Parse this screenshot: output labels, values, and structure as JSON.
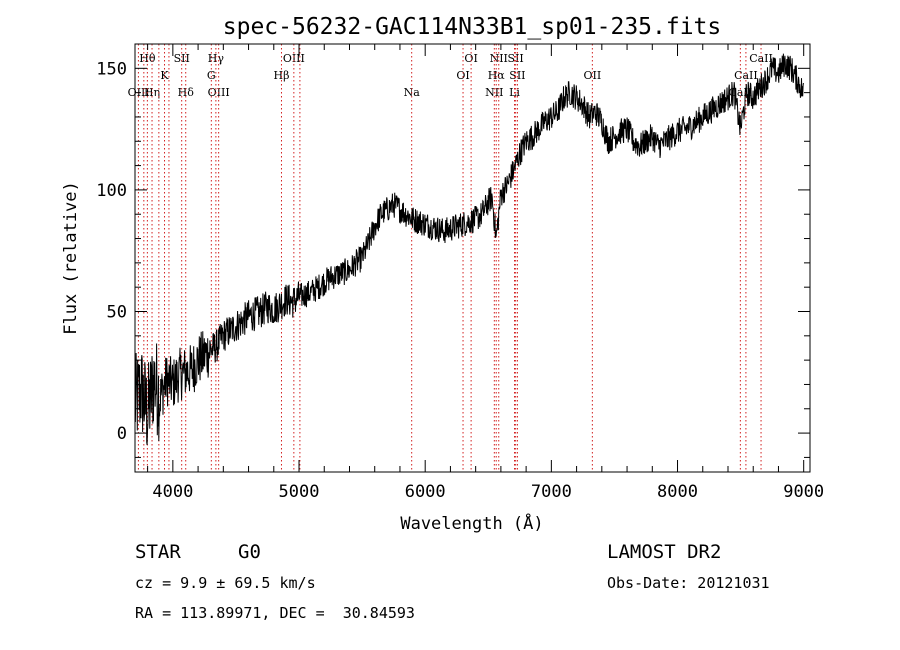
{
  "chart_data": {
    "type": "line",
    "title": "spec-56232-GAC114N33B1_sp01-235.fits",
    "xlabel": "Wavelength (Å)",
    "ylabel": "Flux (relative)",
    "xlim": [
      3700,
      9050
    ],
    "ylim": [
      -16,
      160
    ],
    "xticks": [
      "4000",
      "5000",
      "6000",
      "7000",
      "8000",
      "9000"
    ],
    "xtick_values": [
      4000,
      5000,
      6000,
      7000,
      8000,
      9000
    ],
    "yticks": [
      "0",
      "50",
      "100",
      "150"
    ],
    "ytick_values": [
      0,
      50,
      100,
      150
    ],
    "series": [
      {
        "x": [
          3700,
          3750,
          3800,
          3850,
          3900,
          3950,
          4000,
          4050,
          4100,
          4150,
          4200,
          4250,
          4300,
          4350,
          4400,
          4450,
          4500,
          4550,
          4600,
          4650,
          4700,
          4750,
          4800,
          4850,
          4900,
          4950,
          5000,
          5050,
          5100,
          5150,
          5200,
          5250,
          5300,
          5350,
          5400,
          5450,
          5500,
          5550,
          5600,
          5650,
          5700,
          5750,
          5800,
          5850,
          5900,
          5950,
          6000,
          6050,
          6100,
          6150,
          6200,
          6250,
          6300,
          6350,
          6400,
          6450,
          6500,
          6530,
          6563,
          6600,
          6650,
          6700,
          6750,
          6800,
          6850,
          6900,
          6950,
          7000,
          7050,
          7100,
          7150,
          7200,
          7250,
          7300,
          7350,
          7400,
          7450,
          7500,
          7550,
          7600,
          7650,
          7700,
          7750,
          7800,
          7850,
          7900,
          7950,
          8000,
          8050,
          8100,
          8150,
          8200,
          8250,
          8300,
          8350,
          8400,
          8450,
          8498,
          8550,
          8600,
          8650,
          8700,
          8750,
          8800,
          8850,
          8900,
          8950,
          9000
        ],
        "y": [
          12,
          18,
          8,
          22,
          15,
          22,
          20,
          24,
          25,
          26,
          30,
          32,
          34,
          36,
          40,
          42,
          44,
          46,
          48,
          49,
          50,
          52,
          51,
          53,
          55,
          54,
          56,
          57,
          58,
          60,
          62,
          64,
          65,
          66,
          67,
          70,
          72,
          78,
          85,
          90,
          92,
          94,
          92,
          90,
          88,
          87,
          86,
          85,
          84,
          83,
          84,
          85,
          86,
          87,
          88,
          90,
          95,
          97,
          80,
          98,
          102,
          108,
          115,
          120,
          122,
          125,
          128,
          130,
          132,
          138,
          140,
          138,
          135,
          130,
          132,
          128,
          120,
          122,
          124,
          125,
          120,
          118,
          120,
          122,
          118,
          120,
          122,
          124,
          125,
          126,
          128,
          130,
          132,
          134,
          136,
          138,
          140,
          125,
          140,
          138,
          142,
          145,
          150,
          148,
          152,
          150,
          145,
          140
        ]
      }
    ],
    "emission_lines": [
      {
        "label": "Hθ",
        "x": 3798,
        "row": 0
      },
      {
        "label": "K",
        "x": 3934,
        "row": 1
      },
      {
        "label": "OIII",
        "x": 3729,
        "row": 2
      },
      {
        "label": "Hη",
        "x": 3835,
        "row": 2
      },
      {
        "label": "SII",
        "x": 4070,
        "row": 0
      },
      {
        "label": "Hδ",
        "x": 4102,
        "row": 2
      },
      {
        "label": "Hγ",
        "x": 4341,
        "row": 0
      },
      {
        "label": "G",
        "x": 4305,
        "row": 1
      },
      {
        "label": "OIII",
        "x": 4363,
        "row": 2
      },
      {
        "label": "OIII",
        "x": 4959,
        "row": 0
      },
      {
        "label": "Hβ",
        "x": 4861,
        "row": 1
      },
      {
        "label": "Na",
        "x": 5893,
        "row": 2
      },
      {
        "label": "OI",
        "x": 6364,
        "row": 0
      },
      {
        "label": "OI",
        "x": 6300,
        "row": 1
      },
      {
        "label": "NII",
        "x": 6583,
        "row": 0
      },
      {
        "label": "SII",
        "x": 6717,
        "row": 0
      },
      {
        "label": "Hα",
        "x": 6563,
        "row": 1
      },
      {
        "label": "SII",
        "x": 6731,
        "row": 1
      },
      {
        "label": "NII",
        "x": 6548,
        "row": 2
      },
      {
        "label": "Li",
        "x": 6708,
        "row": 2
      },
      {
        "label": "OII",
        "x": 7325,
        "row": 1
      },
      {
        "label": "CaII",
        "x": 8662,
        "row": 0
      },
      {
        "label": "CaII",
        "x": 8542,
        "row": 1
      },
      {
        "label": "CaII",
        "x": 8498,
        "row": 2
      }
    ],
    "emission_line_markers": [
      3727,
      3770,
      3798,
      3835,
      3889,
      3934,
      3969,
      4070,
      4102,
      4305,
      4341,
      4363,
      4861,
      4959,
      5007,
      5893,
      6300,
      6364,
      6548,
      6563,
      6583,
      6708,
      6717,
      6731,
      7325,
      8498,
      8542,
      8662
    ]
  },
  "info": {
    "object_class": "STAR",
    "subclass": "G0",
    "survey": "LAMOST DR2",
    "redshift": "cz = 9.9 ± 69.5 km/s",
    "obs_date": "Obs-Date: 20121031",
    "coords": "RA = 113.89971, DEC =  30.84593"
  }
}
